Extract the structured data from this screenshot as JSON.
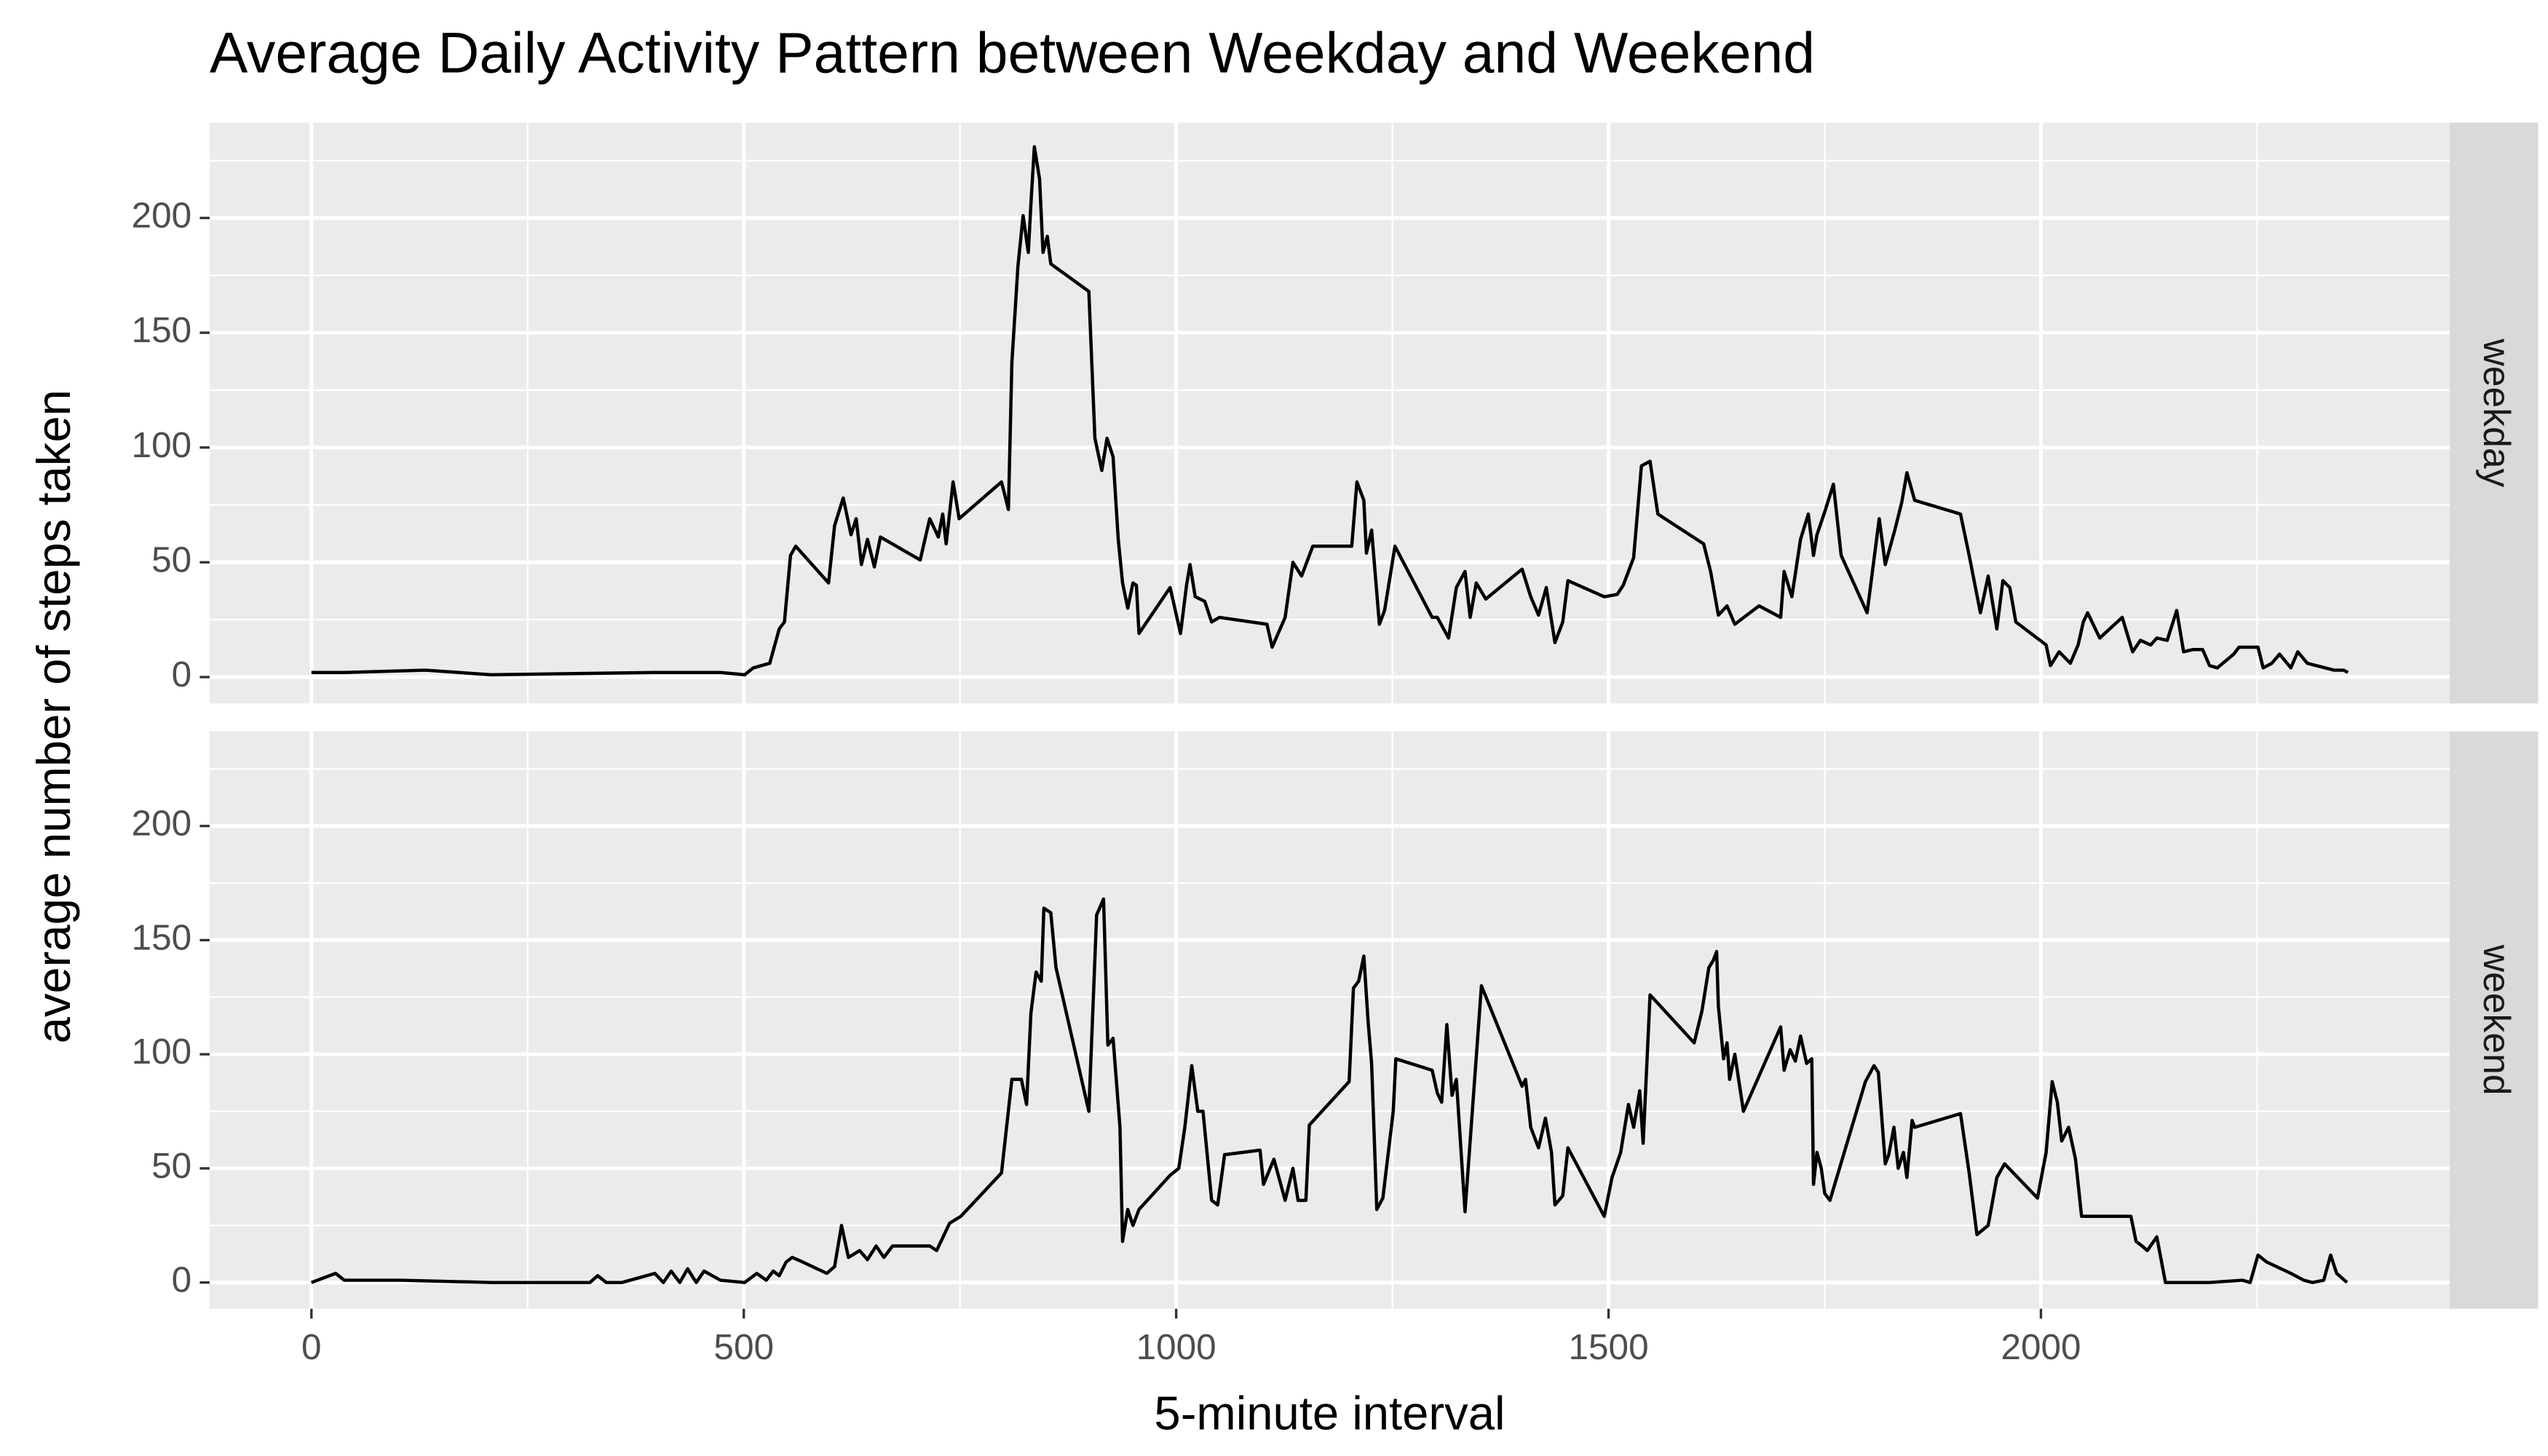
{
  "chart_data": {
    "type": "line",
    "title": "Average Daily Activity Pattern between Weekday and Weekend",
    "xlabel": "5-minute interval",
    "ylabel": "average number of steps taken",
    "xlim": [
      -117.75,
      2472.75
    ],
    "ylim": [
      -11.5,
      241.5
    ],
    "xticks": [
      0,
      500,
      1000,
      1500,
      2000
    ],
    "yticks": [
      0,
      50,
      100,
      150,
      200
    ],
    "x_minor_ticks": [
      250,
      750,
      1250,
      1750,
      2250
    ],
    "y_minor_ticks": [
      25,
      75,
      125,
      175,
      225
    ],
    "grid": true,
    "color": "#000000",
    "series": [
      {
        "name": "weekday",
        "x": [
          0,
          38,
          132,
          208,
          397,
          473,
          501,
          511,
          530,
          541,
          547,
          554,
          560,
          598,
          605,
          615,
          624,
          630,
          636,
          643,
          651,
          658,
          704,
          715,
          725,
          730,
          734,
          742,
          749,
          798,
          806,
          810,
          817,
          823,
          829,
          832,
          836,
          842,
          846,
          851,
          855,
          899,
          906,
          914,
          920,
          927,
          933,
          938,
          944,
          950,
          954,
          957,
          993,
          1005,
          1012,
          1016,
          1022,
          1033,
          1041,
          1050,
          1105,
          1111,
          1126,
          1135,
          1145,
          1158,
          1203,
          1209,
          1217,
          1220,
          1226,
          1235,
          1241,
          1253,
          1296,
          1302,
          1315,
          1324,
          1334,
          1340,
          1347,
          1358,
          1400,
          1410,
          1419,
          1428,
          1438,
          1447,
          1453,
          1495,
          1510,
          1517,
          1529,
          1538,
          1548,
          1557,
          1610,
          1618,
          1627,
          1637,
          1646,
          1674,
          1699,
          1703,
          1712,
          1722,
          1731,
          1737,
          1741,
          1750,
          1760,
          1769,
          1799,
          1813,
          1820,
          1831,
          1839,
          1845,
          1854,
          1907,
          1917,
          1930,
          1939,
          1949,
          1956,
          1964,
          1971,
          2006,
          2011,
          2021,
          2034,
          2043,
          2049,
          2054,
          2068,
          2094,
          2106,
          2115,
          2127,
          2134,
          2146,
          2157,
          2165,
          2176,
          2187,
          2195,
          2204,
          2223,
          2229,
          2251,
          2257,
          2267,
          2276,
          2289,
          2297,
          2308,
          2339,
          2350,
          2355
        ],
        "values": [
          2,
          2,
          3,
          1,
          2,
          2,
          1,
          4,
          6,
          21,
          24,
          53,
          57,
          41,
          66,
          78,
          62,
          69,
          49,
          60,
          48,
          61,
          51,
          69,
          61,
          71,
          58,
          85,
          69,
          85,
          73,
          137,
          179,
          201,
          185,
          206,
          231,
          217,
          185,
          192,
          180,
          168,
          104,
          90,
          104,
          96,
          60,
          41,
          30,
          41,
          40,
          19,
          39,
          19,
          40,
          49,
          35,
          33,
          24,
          26,
          23,
          13,
          26,
          50,
          44,
          57,
          57,
          85,
          77,
          54,
          64,
          23,
          29,
          57,
          26,
          26,
          17,
          39,
          46,
          26,
          41,
          34,
          47,
          35,
          27,
          39,
          15,
          24,
          42,
          35,
          36,
          40,
          52,
          92,
          94,
          71,
          58,
          46,
          27,
          31,
          23,
          31,
          26,
          46,
          35,
          60,
          71,
          53,
          62,
          72,
          84,
          53,
          28,
          69,
          49,
          64,
          76,
          89,
          77,
          71,
          53,
          28,
          44,
          21,
          42,
          39,
          24,
          14,
          5,
          11,
          6,
          14,
          24,
          28,
          17,
          26,
          11,
          16,
          14,
          17,
          16,
          29,
          11,
          12,
          12,
          5,
          4,
          10,
          13,
          13,
          4,
          6,
          10,
          4,
          11,
          6,
          3,
          3,
          2
        ]
      },
      {
        "name": "weekend",
        "x": [
          0,
          28,
          38,
          104,
          208,
          322,
          331,
          341,
          359,
          397,
          407,
          416,
          426,
          435,
          445,
          454,
          473,
          501,
          515,
          526,
          534,
          541,
          549,
          556,
          568,
          596,
          605,
          613,
          621,
          634,
          643,
          653,
          662,
          672,
          700,
          715,
          723,
          738,
          751,
          798,
          810,
          821,
          827,
          832,
          838,
          844,
          847,
          855,
          861,
          899,
          908,
          916,
          921,
          927,
          935,
          938,
          944,
          950,
          957,
          993,
          1003,
          1010,
          1018,
          1025,
          1031,
          1041,
          1048,
          1056,
          1097,
          1101,
          1113,
          1126,
          1135,
          1141,
          1150,
          1154,
          1200,
          1205,
          1211,
          1217,
          1222,
          1226,
          1232,
          1239,
          1251,
          1254,
          1296,
          1302,
          1307,
          1313,
          1319,
          1324,
          1334,
          1353,
          1400,
          1404,
          1410,
          1419,
          1427,
          1434,
          1438,
          1447,
          1453,
          1495,
          1504,
          1514,
          1523,
          1529,
          1536,
          1540,
          1548,
          1599,
          1608,
          1616,
          1621,
          1625,
          1627,
          1633,
          1637,
          1640,
          1646,
          1656,
          1699,
          1703,
          1710,
          1716,
          1722,
          1729,
          1735,
          1737,
          1741,
          1746,
          1750,
          1756,
          1797,
          1807,
          1812,
          1820,
          1824,
          1830,
          1835,
          1841,
          1845,
          1851,
          1854,
          1907,
          1917,
          1926,
          1939,
          1949,
          1958,
          1996,
          2006,
          2013,
          2019,
          2024,
          2032,
          2040,
          2047,
          2100,
          2104,
          2110,
          2117,
          2123,
          2134,
          2144,
          2195,
          2233,
          2242,
          2251,
          2261,
          2289,
          2304,
          2314,
          2327,
          2335,
          2342,
          2354
        ],
        "values": [
          0,
          4,
          1,
          1,
          0,
          0,
          3,
          0,
          0,
          4,
          0,
          5,
          0,
          6,
          0,
          5,
          1,
          0,
          4,
          1,
          5,
          3,
          9,
          11,
          9,
          4,
          7,
          25,
          11,
          14,
          10,
          16,
          11,
          16,
          16,
          16,
          14,
          26,
          29,
          48,
          89,
          89,
          78,
          118,
          136,
          132,
          164,
          162,
          138,
          75,
          161,
          168,
          104,
          107,
          68,
          18,
          32,
          25,
          32,
          47,
          50,
          68,
          95,
          75,
          75,
          36,
          34,
          56,
          58,
          43,
          54,
          36,
          50,
          36,
          36,
          69,
          88,
          129,
          132,
          143,
          114,
          96,
          32,
          37,
          75,
          98,
          93,
          83,
          79,
          113,
          82,
          89,
          31,
          130,
          86,
          89,
          68,
          59,
          72,
          57,
          34,
          38,
          59,
          29,
          46,
          57,
          78,
          68,
          84,
          61,
          126,
          105,
          119,
          138,
          141,
          145,
          121,
          98,
          105,
          89,
          100,
          75,
          112,
          93,
          102,
          97,
          108,
          96,
          98,
          43,
          57,
          50,
          39,
          36,
          88,
          95,
          92,
          52,
          56,
          68,
          50,
          57,
          46,
          71,
          68,
          74,
          48,
          21,
          25,
          46,
          52,
          37,
          57,
          88,
          79,
          62,
          68,
          54,
          29,
          29,
          29,
          18,
          16,
          14,
          20,
          0,
          0,
          1,
          0,
          12,
          9,
          4,
          1,
          0,
          1,
          12,
          4,
          0
        ]
      }
    ]
  }
}
